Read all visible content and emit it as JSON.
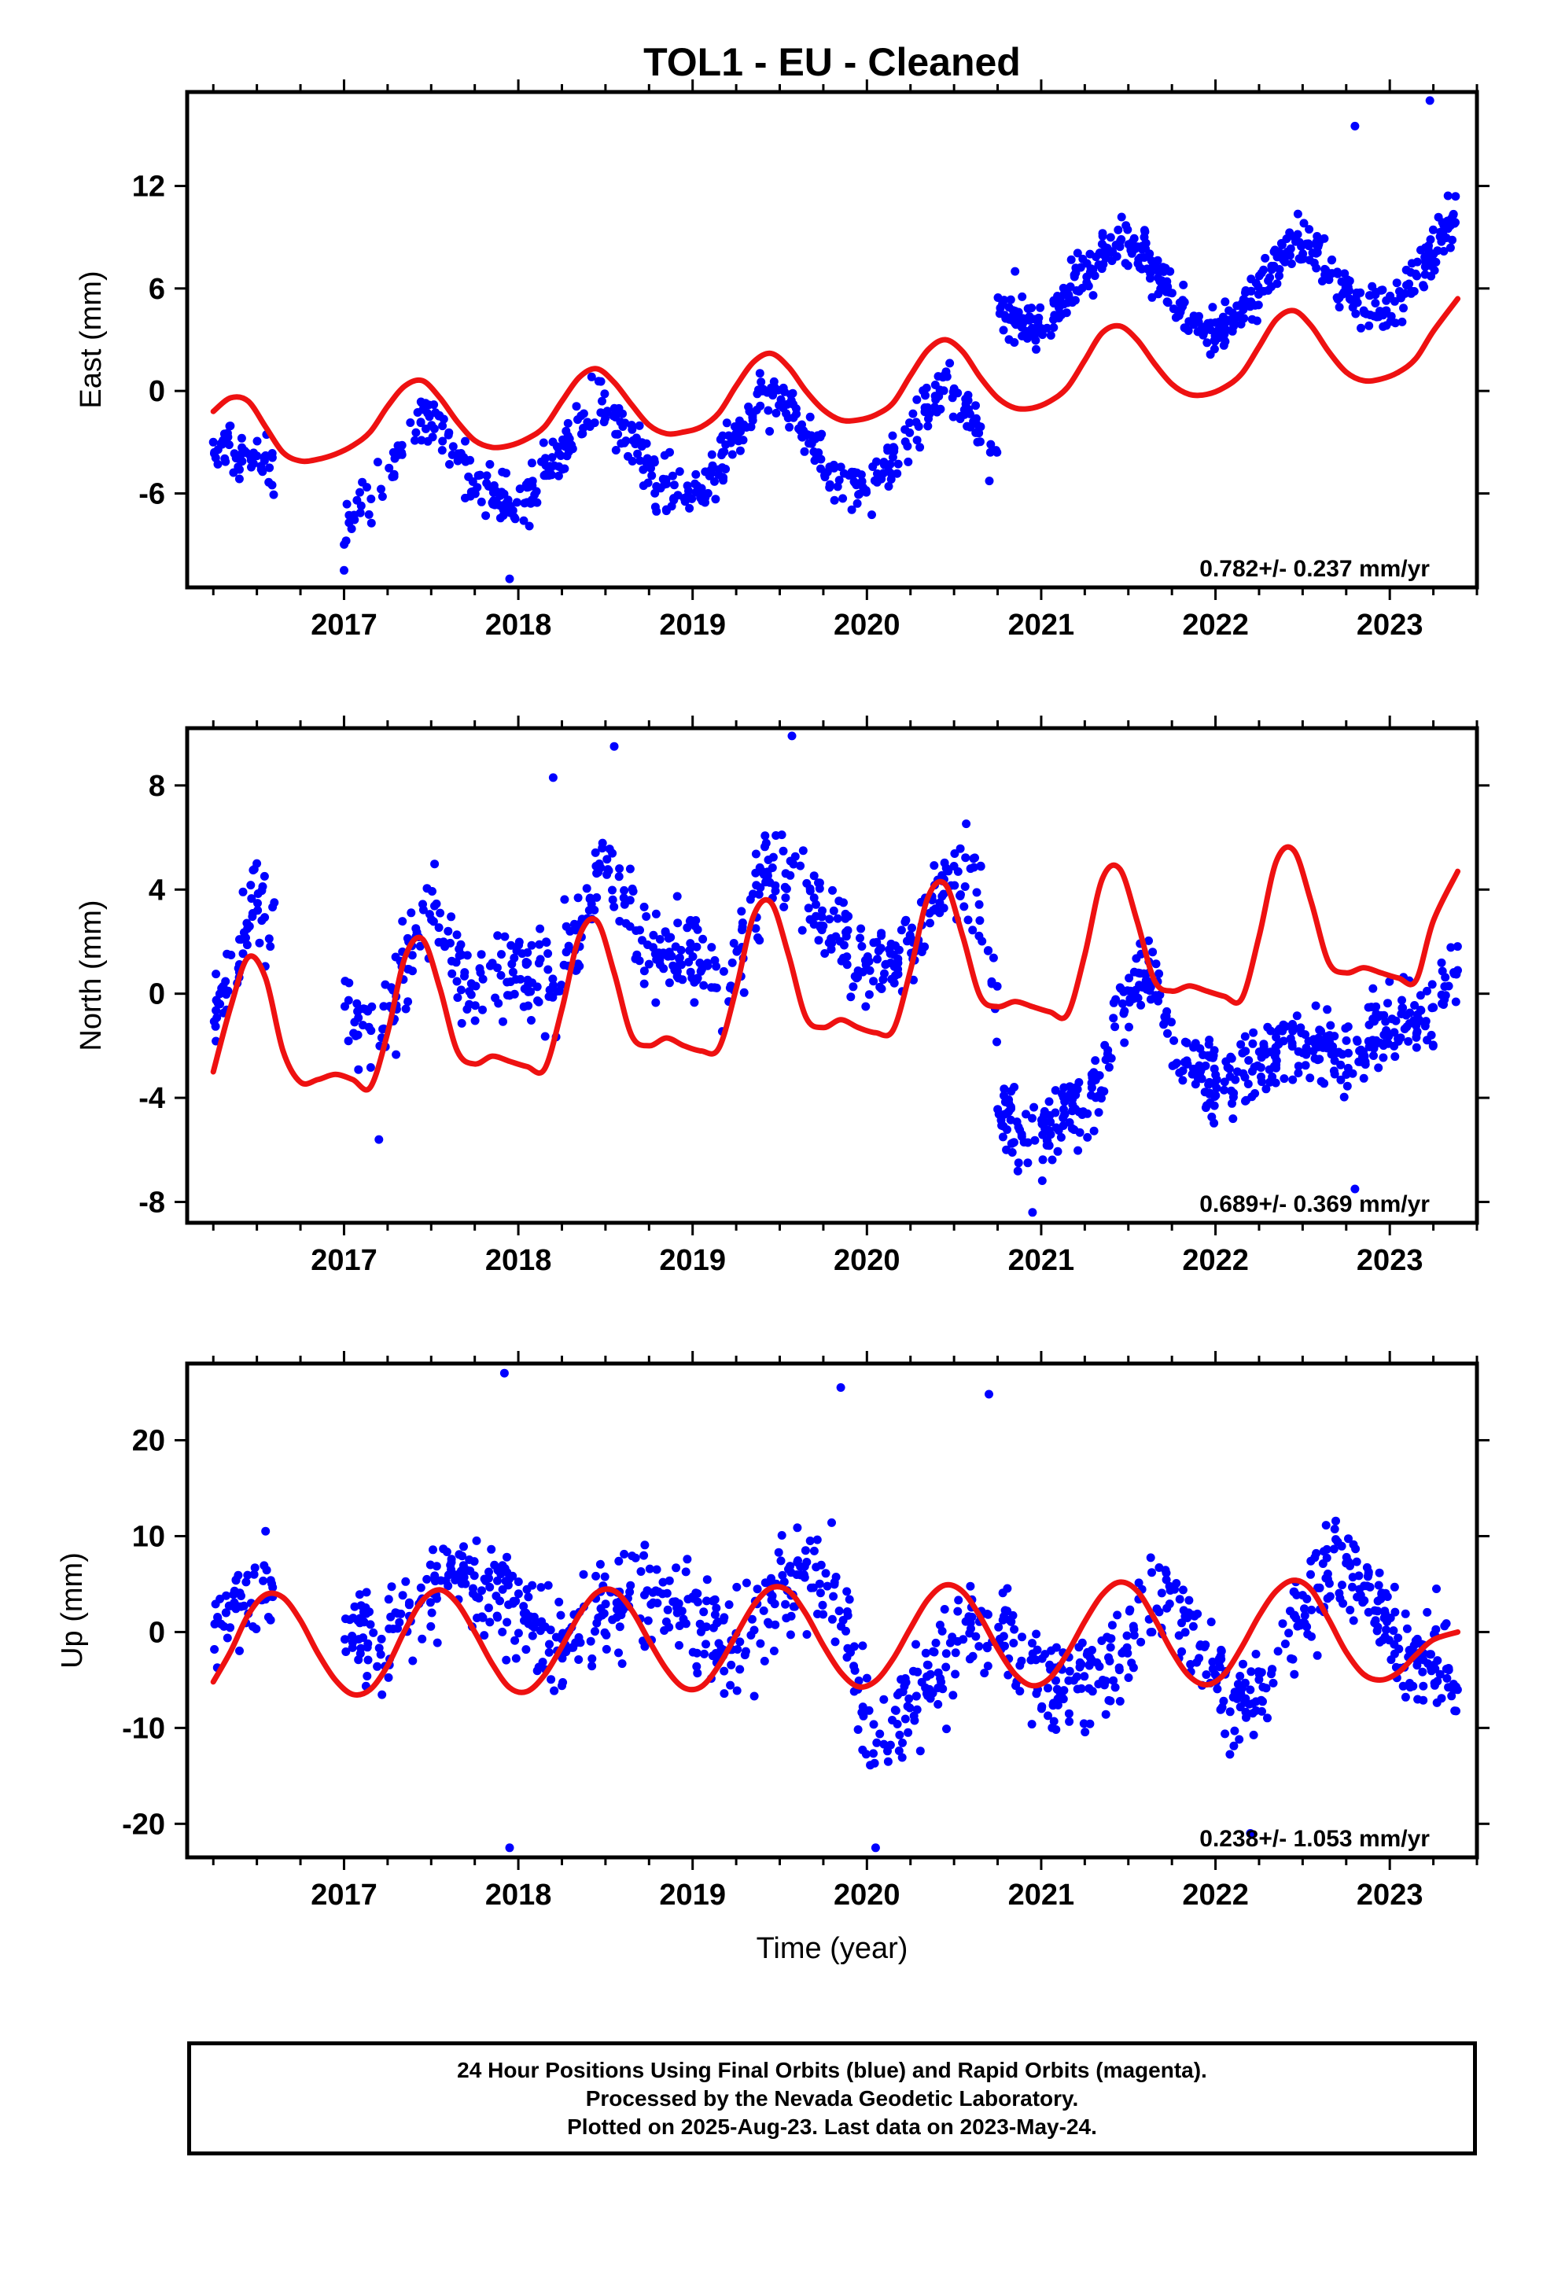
{
  "title": "TOL1  - EU - Cleaned",
  "xlabel": "Time (year)",
  "footer": {
    "line1": "24 Hour Positions Using Final Orbits (blue) and Rapid Orbits (magenta).",
    "line2": "Processed by the Nevada Geodetic Laboratory.",
    "line3": "Plotted on 2025-Aug-23. Last data on 2023-May-24."
  },
  "colors": {
    "final_orbits": "#0000ff",
    "model_fit": "#ee1111",
    "axes": "#000000"
  },
  "chart_data": [
    {
      "type": "scatter",
      "panel": "east",
      "ylabel": "East (mm)",
      "rate_label": "0.782+/- 0.237 mm/yr",
      "xlim": [
        2016.1,
        2023.5
      ],
      "ylim": [
        -11.5,
        17.5
      ],
      "xticks": [
        2017,
        2018,
        2019,
        2020,
        2021,
        2022,
        2023
      ],
      "yticks": [
        -6,
        0,
        6,
        12
      ],
      "data_start": 2016.25,
      "data_end": 2023.39,
      "gaps": [
        [
          2016.6,
          2017.0
        ]
      ],
      "segments": [
        {
          "from": 2016.2,
          "to": 2020.75,
          "x": [
            2016.25,
            2016.4,
            2016.55,
            2016.75,
            2017.0,
            2017.2,
            2017.45,
            2017.6,
            2017.75,
            2018.0,
            2018.2,
            2018.45,
            2018.6,
            2018.75,
            2019.0,
            2019.2,
            2019.4,
            2019.6,
            2019.75,
            2020.0,
            2020.2,
            2020.45,
            2020.6,
            2020.72
          ],
          "y": [
            -3.2,
            -3.8,
            -4.0,
            -6.0,
            -8.2,
            -5.5,
            -1.3,
            -2.5,
            -5.5,
            -7.2,
            -4.5,
            -0.5,
            -2.0,
            -5.0,
            -6.5,
            -3.8,
            0.0,
            -1.5,
            -4.0,
            -6.0,
            -3.2,
            0.8,
            -1.5,
            -4.0
          ],
          "spread": 1.3,
          "count": 620
        },
        {
          "from": 2020.75,
          "to": 2023.42,
          "x": [
            2020.75,
            2021.0,
            2021.2,
            2021.45,
            2021.6,
            2021.75,
            2022.0,
            2022.2,
            2022.45,
            2022.6,
            2022.75,
            2023.0,
            2023.2,
            2023.39
          ],
          "y": [
            5.0,
            3.5,
            6.5,
            8.8,
            8.0,
            5.5,
            3.2,
            5.5,
            8.8,
            8.0,
            5.5,
            4.5,
            7.5,
            11.0
          ],
          "spread": 1.2,
          "count": 470
        }
      ],
      "outliers": [
        [
          2016.25,
          -3.0
        ],
        [
          2016.4,
          -4.6
        ],
        [
          2016.5,
          -3.8
        ],
        [
          2022.8,
          15.5
        ],
        [
          2023.23,
          17.0
        ],
        [
          2017.0,
          -10.5
        ],
        [
          2017.95,
          -11.0
        ],
        [
          2020.85,
          7.0
        ]
      ],
      "model": {
        "x": [
          2016.25,
          2016.35,
          2016.45,
          2016.55,
          2016.65,
          2016.75,
          2016.85,
          2016.95,
          2017.05,
          2017.15,
          2017.25,
          2017.35,
          2017.45,
          2017.55,
          2017.65,
          2017.75,
          2017.85,
          2017.95,
          2018.05,
          2018.15,
          2018.25,
          2018.35,
          2018.45,
          2018.55,
          2018.65,
          2018.75,
          2018.85,
          2018.95,
          2019.05,
          2019.15,
          2019.25,
          2019.35,
          2019.45,
          2019.55,
          2019.65,
          2019.75,
          2019.85,
          2019.95,
          2020.05,
          2020.15,
          2020.25,
          2020.35,
          2020.45,
          2020.55,
          2020.65,
          2020.75,
          2020.85,
          2020.95,
          2021.05,
          2021.15,
          2021.25,
          2021.35,
          2021.45,
          2021.55,
          2021.65,
          2021.75,
          2021.85,
          2021.95,
          2022.05,
          2022.15,
          2022.25,
          2022.35,
          2022.45,
          2022.55,
          2022.65,
          2022.75,
          2022.85,
          2022.95,
          2023.05,
          2023.15,
          2023.25,
          2023.39
        ],
        "y": [
          -1.2,
          -0.4,
          -0.6,
          -2.1,
          -3.6,
          -4.1,
          -4.0,
          -3.7,
          -3.2,
          -2.4,
          -0.9,
          0.3,
          0.6,
          -0.4,
          -1.8,
          -2.9,
          -3.3,
          -3.2,
          -2.8,
          -2.1,
          -0.6,
          0.8,
          1.3,
          0.5,
          -0.8,
          -2.0,
          -2.5,
          -2.4,
          -2.1,
          -1.3,
          0.3,
          1.7,
          2.2,
          1.4,
          0.0,
          -1.1,
          -1.7,
          -1.7,
          -1.4,
          -0.7,
          0.9,
          2.4,
          3.0,
          2.3,
          0.8,
          -0.4,
          -1.0,
          -1.0,
          -0.6,
          0.2,
          1.8,
          3.4,
          3.8,
          3.0,
          1.6,
          0.4,
          -0.2,
          -0.2,
          0.2,
          1.0,
          2.6,
          4.2,
          4.7,
          3.8,
          2.3,
          1.1,
          0.6,
          0.7,
          1.1,
          1.9,
          3.5,
          5.4
        ]
      }
    },
    {
      "type": "scatter",
      "panel": "north",
      "ylabel": "North (mm)",
      "rate_label": "0.689+/- 0.369 mm/yr",
      "xlim": [
        2016.1,
        2023.5
      ],
      "ylim": [
        -8.8,
        10.2
      ],
      "xticks": [
        2017,
        2018,
        2019,
        2020,
        2021,
        2022,
        2023
      ],
      "yticks": [
        -8,
        -4,
        0,
        4,
        8
      ],
      "data_start": 2016.25,
      "data_end": 2023.39,
      "gaps": [
        [
          2016.6,
          2017.0
        ]
      ],
      "segments": [
        {
          "from": 2016.2,
          "to": 2020.75,
          "x": [
            2016.25,
            2016.5,
            2017.0,
            2017.2,
            2017.5,
            2017.7,
            2018.0,
            2018.2,
            2018.5,
            2018.7,
            2019.0,
            2019.2,
            2019.45,
            2019.6,
            2019.8,
            2020.0,
            2020.2,
            2020.5,
            2020.65,
            2020.75
          ],
          "y": [
            -1.0,
            3.5,
            -0.5,
            -1.5,
            3.0,
            0.5,
            1.0,
            0.0,
            5.0,
            2.0,
            1.5,
            0.0,
            5.5,
            4.5,
            2.5,
            1.0,
            1.5,
            5.0,
            3.5,
            0.0
          ],
          "spread": 1.5,
          "count": 650
        },
        {
          "from": 2020.75,
          "to": 2023.42,
          "x": [
            2020.75,
            2020.9,
            2021.1,
            2021.3,
            2021.5,
            2021.6,
            2021.8,
            2022.0,
            2022.2,
            2022.45,
            2022.6,
            2022.8,
            2023.0,
            2023.2,
            2023.39
          ],
          "y": [
            -4.5,
            -5.5,
            -5.0,
            -4.0,
            0.5,
            1.0,
            -2.5,
            -3.5,
            -3.0,
            -1.5,
            -2.0,
            -2.5,
            -1.0,
            -1.0,
            0.5
          ],
          "spread": 1.2,
          "count": 470
        }
      ],
      "outliers": [
        [
          2016.5,
          5.0
        ],
        [
          2016.6,
          3.5
        ],
        [
          2018.55,
          9.5
        ],
        [
          2019.57,
          9.9
        ],
        [
          2018.2,
          8.3
        ],
        [
          2017.2,
          -5.6
        ],
        [
          2020.95,
          -8.4
        ],
        [
          2022.8,
          -7.5
        ]
      ],
      "model": {
        "x": [
          2016.25,
          2016.35,
          2016.45,
          2016.55,
          2016.65,
          2016.75,
          2016.85,
          2016.95,
          2017.05,
          2017.15,
          2017.25,
          2017.35,
          2017.45,
          2017.55,
          2017.65,
          2017.75,
          2017.85,
          2017.95,
          2018.05,
          2018.15,
          2018.25,
          2018.35,
          2018.45,
          2018.55,
          2018.65,
          2018.75,
          2018.85,
          2018.95,
          2019.05,
          2019.15,
          2019.25,
          2019.35,
          2019.45,
          2019.55,
          2019.65,
          2019.75,
          2019.85,
          2019.95,
          2020.05,
          2020.15,
          2020.25,
          2020.35,
          2020.45,
          2020.55,
          2020.65,
          2020.75,
          2020.85,
          2020.95,
          2021.05,
          2021.15,
          2021.25,
          2021.35,
          2021.45,
          2021.55,
          2021.65,
          2021.75,
          2021.85,
          2021.95,
          2022.05,
          2022.15,
          2022.25,
          2022.35,
          2022.45,
          2022.55,
          2022.65,
          2022.75,
          2022.85,
          2022.95,
          2023.05,
          2023.15,
          2023.25,
          2023.39
        ],
        "y": [
          -3.0,
          -0.5,
          1.4,
          0.6,
          -2.2,
          -3.4,
          -3.3,
          -3.1,
          -3.3,
          -3.6,
          -1.5,
          1.4,
          2.1,
          0.2,
          -2.2,
          -2.7,
          -2.4,
          -2.6,
          -2.8,
          -2.9,
          -0.6,
          2.2,
          2.8,
          0.8,
          -1.6,
          -2.0,
          -1.7,
          -2.0,
          -2.2,
          -2.1,
          0.2,
          3.0,
          3.5,
          1.5,
          -0.9,
          -1.3,
          -1.0,
          -1.3,
          -1.5,
          -1.4,
          0.9,
          3.7,
          4.2,
          2.2,
          -0.1,
          -0.5,
          -0.3,
          -0.5,
          -0.7,
          -0.8,
          1.5,
          4.4,
          4.8,
          2.8,
          0.5,
          0.1,
          0.3,
          0.1,
          -0.1,
          -0.2,
          2.2,
          5.1,
          5.5,
          3.5,
          1.2,
          0.8,
          1.0,
          0.8,
          0.6,
          0.5,
          2.8,
          4.7
        ]
      }
    },
    {
      "type": "scatter",
      "panel": "up",
      "ylabel": "Up (mm)",
      "rate_label": "0.238+/- 1.053 mm/yr",
      "xlim": [
        2016.1,
        2023.5
      ],
      "ylim": [
        -23.5,
        28
      ],
      "xticks": [
        2017,
        2018,
        2019,
        2020,
        2021,
        2022,
        2023
      ],
      "yticks": [
        -20,
        -10,
        0,
        10,
        20
      ],
      "data_start": 2016.25,
      "data_end": 2023.39,
      "gaps": [
        [
          2016.6,
          2017.0
        ]
      ],
      "segments": [
        {
          "from": 2016.2,
          "to": 2023.42,
          "x": [
            2016.25,
            2016.55,
            2017.0,
            2017.2,
            2017.6,
            2017.9,
            2018.2,
            2018.6,
            2018.9,
            2019.2,
            2019.6,
            2019.85,
            2020.05,
            2020.3,
            2020.6,
            2020.85,
            2021.1,
            2021.4,
            2021.7,
            2021.9,
            2022.1,
            2022.35,
            2022.65,
            2022.9,
            2023.1,
            2023.39
          ],
          "y": [
            0.5,
            5.0,
            2.0,
            -2.0,
            6.0,
            4.0,
            -2.0,
            4.0,
            4.0,
            -3.0,
            7.0,
            2.0,
            -12.0,
            -6.0,
            2.0,
            -2.0,
            -6.0,
            -3.0,
            6.0,
            0.0,
            -8.0,
            -4.0,
            8.0,
            4.0,
            -2.0,
            -4.0
          ],
          "spread": 4.5,
          "count": 1100
        }
      ],
      "outliers": [
        [
          2017.92,
          27.0
        ],
        [
          2019.85,
          25.5
        ],
        [
          2020.7,
          24.8
        ],
        [
          2017.95,
          -22.5
        ],
        [
          2020.05,
          -22.5
        ],
        [
          2022.2,
          -21.0
        ]
      ],
      "model": {
        "x": [
          2016.25,
          2016.35,
          2016.45,
          2016.55,
          2016.65,
          2016.75,
          2016.85,
          2016.95,
          2017.05,
          2017.15,
          2017.25,
          2017.35,
          2017.45,
          2017.55,
          2017.65,
          2017.75,
          2017.85,
          2017.95,
          2018.05,
          2018.15,
          2018.25,
          2018.35,
          2018.45,
          2018.55,
          2018.65,
          2018.75,
          2018.85,
          2018.95,
          2019.05,
          2019.15,
          2019.25,
          2019.35,
          2019.45,
          2019.55,
          2019.65,
          2019.75,
          2019.85,
          2019.95,
          2020.05,
          2020.15,
          2020.25,
          2020.35,
          2020.45,
          2020.55,
          2020.65,
          2020.75,
          2020.85,
          2020.95,
          2021.05,
          2021.15,
          2021.25,
          2021.35,
          2021.45,
          2021.55,
          2021.65,
          2021.75,
          2021.85,
          2021.95,
          2022.05,
          2022.15,
          2022.25,
          2022.35,
          2022.45,
          2022.55,
          2022.65,
          2022.75,
          2022.85,
          2022.95,
          2023.05,
          2023.15,
          2023.25,
          2023.39
        ],
        "y": [
          -5.2,
          -2.0,
          1.8,
          3.9,
          3.6,
          1.2,
          -2.2,
          -5.0,
          -6.5,
          -6.0,
          -3.5,
          0.2,
          3.3,
          4.4,
          3.0,
          0.0,
          -3.3,
          -5.8,
          -6.2,
          -4.5,
          -1.5,
          1.8,
          4.1,
          4.3,
          2.3,
          -0.9,
          -3.9,
          -5.8,
          -5.7,
          -3.5,
          -0.3,
          2.8,
          4.6,
          4.3,
          1.9,
          -1.4,
          -4.2,
          -5.7,
          -5.1,
          -2.8,
          0.4,
          3.4,
          4.9,
          4.2,
          1.6,
          -1.7,
          -4.4,
          -5.6,
          -4.8,
          -2.2,
          1.1,
          3.9,
          5.2,
          4.3,
          1.4,
          -2.0,
          -4.6,
          -5.5,
          -4.4,
          -1.6,
          1.7,
          4.3,
          5.4,
          4.4,
          1.3,
          -2.1,
          -4.4,
          -5.0,
          -4.2,
          -2.4,
          -0.8,
          0.0
        ]
      }
    }
  ]
}
